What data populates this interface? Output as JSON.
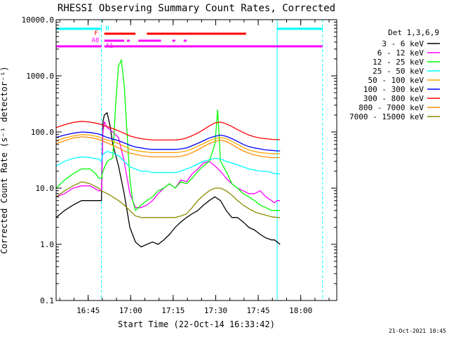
{
  "chart_data": {
    "type": "line",
    "title": "RHESSI Observing Summary Count Rates, Corrected",
    "xlabel": "Start Time (22-Oct-14 16:33:42)",
    "ylabel": "Corrected Count Rate (s⁻¹ detector⁻¹)",
    "yscale": "log",
    "ylim": [
      0.1,
      10000
    ],
    "xlim_minutes": [
      0,
      99
    ],
    "yticks": [
      {
        "value": 0.1,
        "label": "0.1"
      },
      {
        "value": 1,
        "label": "1.0"
      },
      {
        "value": 10,
        "label": "10.0"
      },
      {
        "value": 100,
        "label": "100.0"
      },
      {
        "value": 1000,
        "label": "1000.0"
      },
      {
        "value": 10000,
        "label": "10000.0"
      }
    ],
    "xticks": [
      {
        "minutes": 11.3,
        "label": "16:45"
      },
      {
        "minutes": 26.3,
        "label": "17:00"
      },
      {
        "minutes": 41.3,
        "label": "17:15"
      },
      {
        "minutes": 56.3,
        "label": "17:30"
      },
      {
        "minutes": 71.3,
        "label": "17:45"
      },
      {
        "minutes": 86.3,
        "label": "18:00"
      }
    ],
    "legend_title": "Det 1,3,6,9",
    "legend_position": "right-outside",
    "stamp": "21-Oct-2021 10:45",
    "vlines_minutes": [
      0,
      16,
      78,
      94
    ],
    "vline_color": "#00ffff",
    "flag_labels": [
      {
        "text": "N",
        "color": "#00ffff"
      },
      {
        "text": "F",
        "color": "#ff0000"
      },
      {
        "text": "A0",
        "color": "#ff00ff"
      },
      {
        "text": "A1",
        "color": "#ff00ff"
      }
    ],
    "series": [
      {
        "name": "3 - 6 keV",
        "color": "#000000",
        "x": [
          0,
          3,
          6,
          9,
          12,
          15,
          16,
          16.5,
          17,
          18,
          19,
          20,
          22,
          24,
          26,
          28,
          30,
          32,
          34,
          36,
          38,
          40,
          42,
          44,
          46,
          48,
          50,
          52,
          54,
          56,
          58,
          60,
          62,
          64,
          66,
          68,
          70,
          72,
          74,
          76,
          77,
          78,
          79
        ],
        "y": [
          3,
          4,
          5,
          6,
          6,
          6,
          6,
          150,
          200,
          220,
          130,
          60,
          25,
          8,
          2,
          1.1,
          0.9,
          1,
          1.1,
          1,
          1.2,
          1.5,
          2,
          2.5,
          3,
          3.5,
          4,
          5,
          6,
          7,
          6,
          4,
          3,
          3,
          2.5,
          2,
          1.8,
          1.5,
          1.3,
          1.2,
          1.2,
          1.1,
          1
        ]
      },
      {
        "name": "6 - 12 keV",
        "color": "#ff00ff",
        "x": [
          0,
          3,
          6,
          9,
          12,
          15,
          16,
          16.5,
          17,
          18,
          20,
          22,
          24,
          26,
          28,
          30,
          32,
          34,
          36,
          38,
          40,
          42,
          44,
          46,
          48,
          50,
          52,
          54,
          56,
          58,
          60,
          62,
          64,
          66,
          68,
          70,
          72,
          74,
          76,
          77,
          78,
          79
        ],
        "y": [
          7,
          8,
          10,
          11,
          11,
          9,
          9,
          100,
          150,
          120,
          100,
          80,
          30,
          8,
          4.5,
          4.5,
          5,
          6,
          8,
          10,
          12,
          10,
          14,
          13,
          18,
          22,
          28,
          30,
          25,
          20,
          15,
          12,
          10,
          9,
          8,
          8,
          9,
          7,
          6,
          5.5,
          6,
          6
        ]
      },
      {
        "name": "12 - 25 keV",
        "color": "#00ff00",
        "x": [
          0,
          3,
          6,
          9,
          12,
          14,
          15,
          16,
          16.5,
          18,
          20,
          21,
          22,
          23,
          24,
          25,
          26,
          27,
          28,
          30,
          32,
          34,
          36,
          38,
          40,
          42,
          44,
          46,
          48,
          50,
          52,
          54,
          56,
          57,
          58,
          60,
          62,
          64,
          66,
          68,
          70,
          72,
          74,
          76,
          77,
          78,
          79
        ],
        "y": [
          10,
          14,
          18,
          22,
          22,
          18,
          15,
          15,
          20,
          30,
          35,
          300,
          1500,
          1900,
          700,
          100,
          15,
          6,
          4,
          5,
          6,
          7,
          9,
          10,
          12,
          10,
          13,
          12,
          15,
          20,
          25,
          30,
          60,
          250,
          30,
          20,
          12,
          10,
          8,
          7,
          6,
          5,
          4.5,
          4,
          4,
          4,
          4
        ]
      },
      {
        "name": "25 - 50 keV",
        "color": "#00ffff",
        "x": [
          0,
          3,
          6,
          9,
          12,
          15,
          16,
          16.5,
          18,
          20,
          22,
          24,
          26,
          28,
          30,
          32,
          34,
          36,
          38,
          40,
          42,
          44,
          46,
          48,
          50,
          52,
          54,
          56,
          58,
          60,
          62,
          64,
          66,
          68,
          70,
          72,
          74,
          76,
          77,
          78,
          79
        ],
        "y": [
          25,
          30,
          34,
          36,
          35,
          33,
          30,
          40,
          45,
          42,
          38,
          30,
          24,
          22,
          20,
          20,
          19,
          19,
          19,
          19,
          19,
          20,
          22,
          24,
          27,
          30,
          32,
          34,
          33,
          30,
          28,
          26,
          24,
          22,
          21,
          20,
          20,
          19,
          18,
          18,
          18
        ]
      },
      {
        "name": "50 - 100 keV",
        "color": "#ffa500",
        "x": [
          0,
          3,
          6,
          9,
          12,
          15,
          16,
          18,
          20,
          22,
          24,
          26,
          28,
          30,
          32,
          34,
          36,
          38,
          40,
          42,
          44,
          46,
          48,
          50,
          52,
          54,
          56,
          58,
          60,
          62,
          64,
          66,
          68,
          70,
          72,
          74,
          76,
          78,
          79
        ],
        "y": [
          70,
          78,
          85,
          90,
          88,
          82,
          78,
          72,
          68,
          62,
          56,
          50,
          47,
          45,
          44,
          43,
          43,
          43,
          43,
          43,
          44,
          46,
          50,
          56,
          62,
          70,
          76,
          80,
          76,
          68,
          60,
          53,
          48,
          45,
          43,
          42,
          41,
          41,
          41
        ]
      },
      {
        "name": "100 - 300 keV",
        "color": "#0000ff",
        "x": [
          0,
          3,
          6,
          9,
          12,
          15,
          16,
          18,
          20,
          22,
          24,
          26,
          28,
          30,
          32,
          34,
          36,
          38,
          40,
          42,
          44,
          46,
          48,
          50,
          52,
          54,
          56,
          58,
          60,
          62,
          64,
          66,
          68,
          70,
          72,
          74,
          76,
          78,
          79
        ],
        "y": [
          80,
          88,
          95,
          100,
          98,
          92,
          88,
          80,
          75,
          70,
          64,
          58,
          54,
          52,
          50,
          49,
          49,
          49,
          49,
          49,
          50,
          52,
          57,
          63,
          70,
          78,
          84,
          88,
          84,
          76,
          68,
          60,
          55,
          52,
          50,
          48,
          47,
          46,
          46
        ]
      },
      {
        "name": "300 - 800 keV",
        "color": "#ff0000",
        "x": [
          0,
          3,
          6,
          9,
          12,
          15,
          16,
          18,
          20,
          22,
          24,
          26,
          28,
          30,
          32,
          34,
          36,
          38,
          40,
          42,
          44,
          46,
          48,
          50,
          52,
          54,
          56,
          58,
          60,
          62,
          64,
          66,
          68,
          70,
          72,
          74,
          76,
          78,
          79
        ],
        "y": [
          120,
          135,
          148,
          155,
          150,
          140,
          135,
          125,
          115,
          105,
          95,
          85,
          80,
          76,
          74,
          72,
          72,
          72,
          72,
          72,
          74,
          78,
          86,
          96,
          110,
          128,
          145,
          150,
          140,
          125,
          110,
          98,
          88,
          82,
          78,
          76,
          74,
          73,
          73
        ]
      },
      {
        "name": "800 - 7000 keV",
        "color": "#ff8c00",
        "x": [
          0,
          3,
          6,
          9,
          12,
          15,
          16,
          18,
          20,
          22,
          24,
          26,
          28,
          30,
          32,
          34,
          36,
          38,
          40,
          42,
          44,
          46,
          48,
          50,
          52,
          54,
          56,
          58,
          60,
          62,
          64,
          66,
          68,
          70,
          72,
          74,
          76,
          78,
          79
        ],
        "y": [
          62,
          70,
          78,
          82,
          80,
          74,
          70,
          64,
          58,
          52,
          46,
          42,
          40,
          38,
          37,
          36,
          36,
          36,
          36,
          36,
          37,
          39,
          43,
          48,
          55,
          62,
          68,
          72,
          68,
          60,
          52,
          46,
          42,
          39,
          37,
          36,
          35,
          35,
          35
        ]
      },
      {
        "name": "7000 - 15000 keV",
        "color": "#8b8b00",
        "x": [
          0,
          3,
          6,
          9,
          12,
          15,
          16,
          18,
          20,
          22,
          24,
          26,
          28,
          30,
          32,
          34,
          36,
          38,
          40,
          42,
          44,
          46,
          48,
          50,
          52,
          54,
          56,
          58,
          60,
          62,
          64,
          66,
          68,
          70,
          72,
          74,
          76,
          78,
          79
        ],
        "y": [
          7,
          9,
          11,
          13,
          12,
          10,
          9,
          8,
          7,
          6,
          5,
          4,
          3.2,
          3,
          3,
          3,
          3,
          3,
          3,
          3,
          3.2,
          3.5,
          4.5,
          6,
          7.5,
          9,
          10,
          10,
          9,
          7.5,
          6,
          5,
          4.3,
          3.8,
          3.5,
          3.3,
          3.1,
          3,
          3
        ]
      }
    ],
    "flag_segments": {
      "N": {
        "color": "#00ffff",
        "ranges": [
          [
            0,
            16
          ],
          [
            78,
            94
          ]
        ]
      },
      "F": {
        "color": "#ff0000",
        "ranges": [
          [
            17,
            28
          ],
          [
            32,
            67
          ]
        ]
      },
      "A0": {
        "color": "#ff00ff",
        "ranges": [
          [
            17,
            24
          ],
          [
            25,
            26
          ],
          [
            29,
            37
          ],
          [
            41,
            42
          ],
          [
            45,
            46
          ]
        ]
      },
      "A1": {
        "color": "#ff00ff",
        "ranges": [
          [
            0,
            16
          ],
          [
            17,
            94
          ]
        ]
      }
    }
  }
}
